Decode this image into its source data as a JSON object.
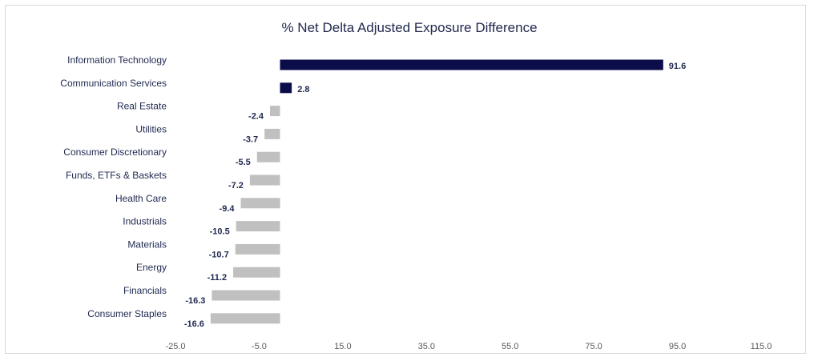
{
  "chart_data": {
    "type": "bar",
    "orientation": "horizontal",
    "title": "% Net Delta Adjusted Exposure Difference",
    "categories": [
      "Information Technology",
      "Communication Services",
      "Real Estate",
      "Utilities",
      "Consumer Discretionary",
      "Funds, ETFs & Baskets",
      "Health Care",
      "Industrials",
      "Materials",
      "Energy",
      "Financials",
      "Consumer Staples"
    ],
    "values": [
      91.6,
      2.8,
      -2.4,
      -3.7,
      -5.5,
      -7.2,
      -9.4,
      -10.5,
      -10.7,
      -11.2,
      -16.3,
      -16.6
    ],
    "value_labels": [
      "91.6",
      "2.8",
      "-2.4",
      "-3.7",
      "-5.5",
      "-7.2",
      "-9.4",
      "-10.5",
      "-10.7",
      "-11.2",
      "-16.3",
      "-16.6"
    ],
    "xticks": [
      -25,
      -5,
      15,
      35,
      55,
      75,
      95,
      115
    ],
    "xtick_labels": [
      "-25.0",
      "-5.0",
      "15.0",
      "35.0",
      "55.0",
      "75.0",
      "95.0",
      "115.0"
    ],
    "xlim": [
      -25,
      115
    ],
    "grid": false,
    "colors": {
      "positive": "#0b0c4a",
      "negative": "#c0c0c0",
      "label": "#1f2850",
      "title": "#222a4e"
    }
  }
}
